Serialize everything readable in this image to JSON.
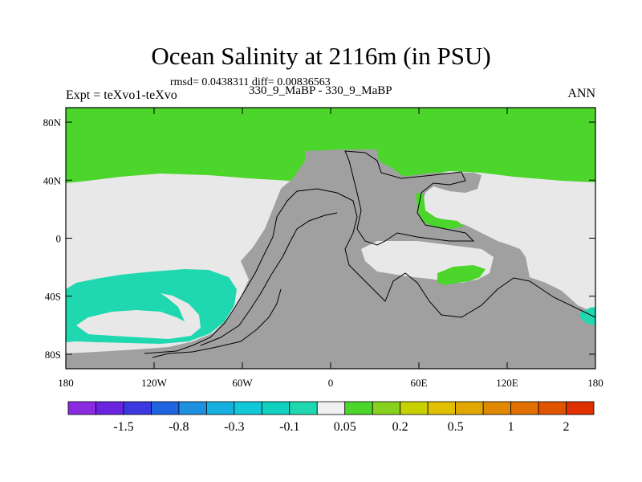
{
  "header": {
    "title": "Ocean Salinity at 2116m (in PSU)",
    "stats": "rmsd= 0.0438311 diff= 0.00836563",
    "subtitle": "330_9_MaBP - 330_9_MaBP",
    "left_label": "Expt = teXvo1-teXvo",
    "right_label": "ANN"
  },
  "chart_data": {
    "type": "heatmap",
    "title": "Ocean Salinity at 2116m (in PSU)",
    "x_range": [
      -180,
      180
    ],
    "y_range": [
      -90,
      90
    ],
    "x_ticks": [
      {
        "value": -180,
        "label": "180"
      },
      {
        "value": -120,
        "label": "120W"
      },
      {
        "value": -60,
        "label": "60W"
      },
      {
        "value": 0,
        "label": "0"
      },
      {
        "value": 60,
        "label": "60E"
      },
      {
        "value": 120,
        "label": "120E"
      },
      {
        "value": 180,
        "label": "180"
      }
    ],
    "y_ticks": [
      {
        "value": 80,
        "label": "80N"
      },
      {
        "value": 40,
        "label": "40N"
      },
      {
        "value": 0,
        "label": "0"
      },
      {
        "value": -40,
        "label": "40S"
      },
      {
        "value": -80,
        "label": "80S"
      }
    ],
    "colorbar": {
      "colors": [
        "#8a2be2",
        "#6a24e0",
        "#3c38e0",
        "#1e64e0",
        "#1e90e0",
        "#16b0e0",
        "#10c8d8",
        "#10d0c0",
        "#20d8b0",
        "#f0f0f0",
        "#4cd52b",
        "#88d020",
        "#c8d000",
        "#e0c000",
        "#e0a800",
        "#e08800",
        "#e07000",
        "#e05400",
        "#e03000"
      ],
      "tick_labels": [
        "-1.5",
        "-0.8",
        "-0.3",
        "-0.1",
        "0.05",
        "0.2",
        "0.5",
        "1",
        "2"
      ]
    },
    "colors": {
      "land": "#a0a0a0",
      "near_zero": "#e8e8e8",
      "positive": "#4cd52b",
      "negative": "#20d8b0"
    }
  }
}
